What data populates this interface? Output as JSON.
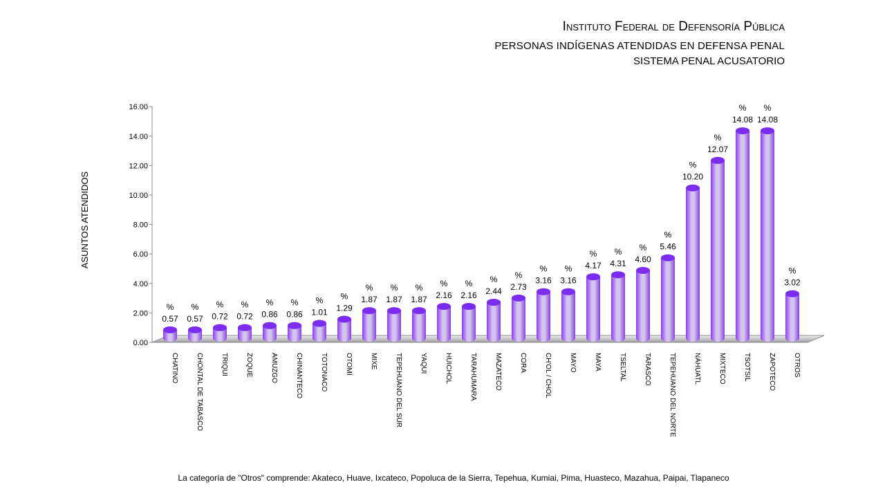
{
  "header": {
    "title": "Instituto Federal de Defensoría Pública",
    "subtitle": "PERSONAS INDÍGENAS ATENDIDAS EN DEFENSA PENAL",
    "subtitle2": "SISTEMA PENAL ACUSATORIO"
  },
  "footnote": "La categoría de \"Otros\" comprende:  Akateco, Huave, Ixcateco, Popoluca de la Sierra, Tepehua, Kumiai, Pima, Huasteco, Mazahua, Paipai, Tlapaneco",
  "colors": {
    "bar_dark": "#8a3df2",
    "bar_light": "#d7c9ea",
    "floor": "#bdbdbd"
  },
  "chart_data": {
    "type": "bar",
    "title": "",
    "xlabel": "",
    "ylabel": "ASUNTOS ATENDIDOS",
    "ylim": [
      0,
      16
    ],
    "yticks": [
      "0.00",
      "2.00",
      "4.00",
      "6.00",
      "8.00",
      "10.00",
      "12.00",
      "14.00",
      "16.00"
    ],
    "value_suffix": "%",
    "grid": false,
    "legend": "none",
    "categories": [
      "CHATINO",
      "CHONTAL DE TABASCO",
      "TRIQUI",
      "ZOQUE",
      "AMUZGO",
      "CHINANTECO",
      "TOTONACO",
      "OTOMÍ",
      "MIXE",
      "TEPEHUANO DEL SUR",
      "YAQUI",
      "HUICHOL",
      "TARAHUMARA",
      "MAZATECO",
      "CORA",
      "CH'OL / CHOL",
      "MAYO",
      "MAYA",
      "TSELTAL",
      "TARASCO",
      "TEPEHUANO DEL NORTE",
      "NÁHUATL",
      "MIXTECO",
      "TSOTSIL",
      "ZAPOTECO",
      "OTROS"
    ],
    "values": [
      0.57,
      0.57,
      0.72,
      0.72,
      0.86,
      0.86,
      1.01,
      1.29,
      1.87,
      1.87,
      1.87,
      2.16,
      2.16,
      2.44,
      2.73,
      3.16,
      3.16,
      4.17,
      4.31,
      4.6,
      5.46,
      10.2,
      12.07,
      14.08,
      14.08,
      3.02
    ],
    "labels": [
      "0.57",
      "0.57",
      "0.72",
      "0.72",
      "0.86",
      "0.86",
      "1.01",
      "1.29",
      "1.87",
      "1.87",
      "1.87",
      "2.16",
      "2.16",
      "2.44",
      "2.73",
      "3.16",
      "3.16",
      "4.17",
      "4.31",
      "4.60",
      "5.46",
      "10.20",
      "12.07",
      "14.08",
      "14.08",
      "3.02"
    ]
  }
}
